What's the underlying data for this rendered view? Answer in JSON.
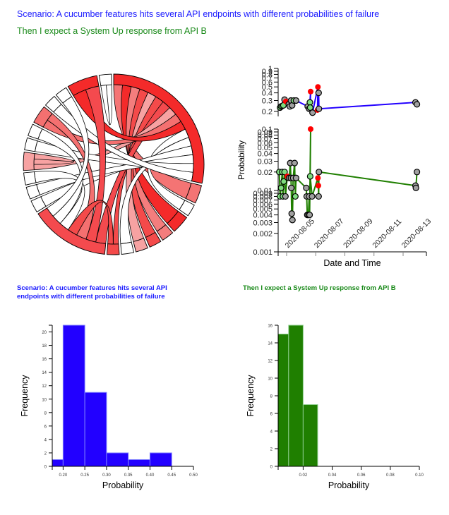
{
  "header": {
    "scenario_title": "Scenario: A cucumber features hits several API endpoints with different probabilities of failure",
    "step_title": "Then I expect a System Up response from API B"
  },
  "colors": {
    "scenario": "#2200ff",
    "step": "#1f7f00",
    "failure": "#ff0000",
    "pass_point": "#7fdc7f",
    "neutral_point": "#a0a0a0"
  },
  "chart_data": [
    {
      "type": "chord",
      "title": "",
      "groups": [
        {
          "id": 0,
          "color": "#f42a2a"
        },
        {
          "id": 1,
          "color": "#f47474"
        },
        {
          "id": 2,
          "color": "#ffffff"
        },
        {
          "id": 3,
          "color": "#f42a2a"
        },
        {
          "id": 4,
          "color": "#f47d7d"
        },
        {
          "id": 5,
          "color": "#f44a4a"
        },
        {
          "id": 6,
          "color": "#f7a2a2"
        },
        {
          "id": 7,
          "color": "#ffffff"
        },
        {
          "id": 8,
          "color": "#f44a4a"
        },
        {
          "id": 9,
          "color": "#f44a4e"
        },
        {
          "id": 10,
          "color": "#ffffff"
        },
        {
          "id": 11,
          "color": "#ffffff"
        },
        {
          "id": 12,
          "color": "#ffffff"
        },
        {
          "id": 13,
          "color": "#f7a2a2"
        },
        {
          "id": 14,
          "color": "#ffffff"
        },
        {
          "id": 15,
          "color": "#ffffff"
        },
        {
          "id": 16,
          "color": "#f47070"
        },
        {
          "id": 17,
          "color": "#ffffff"
        },
        {
          "id": 18,
          "color": "#ffffff"
        },
        {
          "id": 19,
          "color": "#f42a2a"
        },
        {
          "id": 20,
          "color": "#ffffff"
        }
      ],
      "group_weights": [
        26,
        3,
        2,
        3,
        2,
        2,
        2,
        2,
        2,
        13,
        2,
        2,
        2,
        3,
        2,
        2,
        3,
        2,
        2,
        5,
        2
      ],
      "ribbons": [
        {
          "source": 0,
          "target": 1,
          "color": "#f47474"
        },
        {
          "source": 0,
          "target": 3,
          "color": "#f42a2a"
        },
        {
          "source": 0,
          "target": 4,
          "color": "#f47d7d"
        },
        {
          "source": 0,
          "target": 5,
          "color": "#f44a4a"
        },
        {
          "source": 0,
          "target": 6,
          "color": "#f7a2a2"
        },
        {
          "source": 0,
          "target": 8,
          "color": "#f44a4a"
        },
        {
          "source": 0,
          "target": 9,
          "color": "#f44a4e"
        },
        {
          "source": 0,
          "target": 13,
          "color": "#f7a2a2"
        },
        {
          "source": 0,
          "target": 16,
          "color": "#f47070"
        },
        {
          "source": 0,
          "target": 19,
          "color": "#f42a2a"
        },
        {
          "source": 0,
          "target": 2,
          "color": "#ffffff"
        },
        {
          "source": 0,
          "target": 7,
          "color": "#ffffff"
        },
        {
          "source": 0,
          "target": 10,
          "color": "#ffffff"
        },
        {
          "source": 0,
          "target": 11,
          "color": "#ffffff"
        },
        {
          "source": 0,
          "target": 14,
          "color": "#ffffff"
        },
        {
          "source": 0,
          "target": 17,
          "color": "#ffffff"
        },
        {
          "source": 9,
          "target": 19,
          "color": "#f44a4e"
        },
        {
          "source": 9,
          "target": 16,
          "color": "#f47070"
        },
        {
          "source": 9,
          "target": 8,
          "color": "#f44a4a"
        },
        {
          "source": 9,
          "target": 12,
          "color": "#ffffff"
        },
        {
          "source": 9,
          "target": 15,
          "color": "#ffffff"
        },
        {
          "source": 9,
          "target": 18,
          "color": "#ffffff"
        },
        {
          "source": 20,
          "target": 20,
          "color": "#ffffff"
        },
        {
          "source": 13,
          "target": 13,
          "color": "#f7a2a2"
        }
      ]
    },
    {
      "type": "line",
      "title": "",
      "xlabel": "Date and Time",
      "ylabel": "Probability",
      "x_ticks": [
        "2020-08-05",
        "2020-08-07",
        "2020-08-09",
        "2020-08-11",
        "2020-08-13"
      ],
      "x_range": [
        "2020-08-04T10:00",
        "2020-08-14T14:00"
      ],
      "panels": [
        {
          "name": "scenario",
          "yscale": "log",
          "ylim": [
            0.18,
            1
          ],
          "y_ticks": [
            "0.2",
            "0.3",
            "0.4",
            "0.5",
            "0.6",
            "0.7",
            "0.8",
            "0.9",
            "1"
          ],
          "series_color": "#2200ff",
          "points": [
            {
              "t": 0.55,
              "v": 0.23,
              "c": "pass"
            },
            {
              "t": 0.62,
              "v": 0.24,
              "c": "pass"
            },
            {
              "t": 0.7,
              "v": 0.245,
              "c": "pass"
            },
            {
              "t": 0.78,
              "v": 0.25,
              "c": "pass"
            },
            {
              "t": 0.86,
              "v": 0.31,
              "c": "neutral"
            },
            {
              "t": 0.95,
              "v": 0.29,
              "c": "fail"
            },
            {
              "t": 1.15,
              "v": 0.26,
              "c": "neutral"
            },
            {
              "t": 1.22,
              "v": 0.24,
              "c": "neutral"
            },
            {
              "t": 1.3,
              "v": 0.3,
              "c": "neutral"
            },
            {
              "t": 1.38,
              "v": 0.25,
              "c": "neutral"
            },
            {
              "t": 1.5,
              "v": 0.3,
              "c": "pass"
            },
            {
              "t": 1.65,
              "v": 0.3,
              "c": "neutral"
            },
            {
              "t": 2.45,
              "v": 0.24,
              "c": "neutral"
            },
            {
              "t": 2.55,
              "v": 0.22,
              "c": "neutral"
            },
            {
              "t": 2.6,
              "v": 0.28,
              "c": "pass"
            },
            {
              "t": 2.65,
              "v": 0.42,
              "c": "fail"
            },
            {
              "t": 2.62,
              "v": 0.23,
              "c": "pass"
            },
            {
              "t": 2.78,
              "v": 0.19,
              "c": "neutral"
            },
            {
              "t": 3.15,
              "v": 0.5,
              "c": "fail"
            },
            {
              "t": 3.12,
              "v": 0.21,
              "c": "fail"
            },
            {
              "t": 3.2,
              "v": 0.4,
              "c": "neutral"
            },
            {
              "t": 3.22,
              "v": 0.22,
              "c": "neutral"
            },
            {
              "t": 9.85,
              "v": 0.28,
              "c": "neutral"
            },
            {
              "t": 9.95,
              "v": 0.26,
              "c": "neutral"
            }
          ]
        },
        {
          "name": "step",
          "yscale": "log",
          "ylim": [
            0.001,
            0.1
          ],
          "y_ticks": [
            "0.001",
            "0.002",
            "0.003",
            "0.004",
            "0.005",
            "0.006",
            "0.007",
            "0.008",
            "0.009",
            "0.01",
            "0.02",
            "0.03",
            "0.04",
            "0.05",
            "0.06",
            "0.07",
            "0.08",
            "0.09",
            "0.1"
          ],
          "series_color": "#1f7f00",
          "points": [
            {
              "t": 0.5,
              "v": 0.02,
              "c": "pass"
            },
            {
              "t": 0.55,
              "v": 0.008,
              "c": "pass"
            },
            {
              "t": 0.62,
              "v": 0.011,
              "c": "pass"
            },
            {
              "t": 0.7,
              "v": 0.02,
              "c": "pass"
            },
            {
              "t": 0.75,
              "v": 0.008,
              "c": "pass"
            },
            {
              "t": 0.8,
              "v": 0.014,
              "c": "pass"
            },
            {
              "t": 0.86,
              "v": 0.02,
              "c": "pass"
            },
            {
              "t": 0.92,
              "v": 0.008,
              "c": "neutral"
            },
            {
              "t": 1.05,
              "v": 0.017,
              "c": "fail"
            },
            {
              "t": 1.18,
              "v": 0.016,
              "c": "neutral"
            },
            {
              "t": 1.25,
              "v": 0.028,
              "c": "neutral"
            },
            {
              "t": 1.3,
              "v": 0.016,
              "c": "neutral"
            },
            {
              "t": 1.32,
              "v": 0.011,
              "c": "neutral"
            },
            {
              "t": 1.35,
              "v": 0.0042,
              "c": "neutral"
            },
            {
              "t": 1.4,
              "v": 0.0033,
              "c": "neutral"
            },
            {
              "t": 1.45,
              "v": 0.016,
              "c": "neutral"
            },
            {
              "t": 1.55,
              "v": 0.028,
              "c": "neutral"
            },
            {
              "t": 1.6,
              "v": 0.008,
              "c": "pass"
            },
            {
              "t": 1.65,
              "v": 0.016,
              "c": "neutral"
            },
            {
              "t": 2.35,
              "v": 0.011,
              "c": "neutral"
            },
            {
              "t": 2.38,
              "v": 0.008,
              "c": "neutral"
            },
            {
              "t": 2.42,
              "v": 0.004,
              "c": "neutral"
            },
            {
              "t": 2.5,
              "v": 0.004,
              "c": "neutral"
            },
            {
              "t": 2.55,
              "v": 0.008,
              "c": "neutral"
            },
            {
              "t": 2.58,
              "v": 0.004,
              "c": "neutral"
            },
            {
              "t": 2.65,
              "v": 0.1,
              "c": "fail"
            },
            {
              "t": 2.62,
              "v": 0.017,
              "c": "pass"
            },
            {
              "t": 2.75,
              "v": 0.008,
              "c": "neutral"
            },
            {
              "t": 3.15,
              "v": 0.016,
              "c": "fail"
            },
            {
              "t": 3.18,
              "v": 0.012,
              "c": "fail"
            },
            {
              "t": 3.2,
              "v": 0.008,
              "c": "neutral"
            },
            {
              "t": 3.22,
              "v": 0.02,
              "c": "neutral"
            },
            {
              "t": 9.85,
              "v": 0.012,
              "c": "neutral"
            },
            {
              "t": 9.88,
              "v": 0.011,
              "c": "neutral"
            },
            {
              "t": 9.95,
              "v": 0.02,
              "c": "neutral"
            }
          ]
        }
      ]
    },
    {
      "type": "bar",
      "title": "Scenario: A cucumber features hits several API endpoints with different probabilities of failure",
      "xlabel": "Probability",
      "ylabel": "Frequency",
      "xlim": [
        0.175,
        0.5
      ],
      "ylim": [
        0,
        21
      ],
      "x_ticks": [
        "0.20",
        "0.25",
        "0.30",
        "0.35",
        "0.40",
        "0.45",
        "0.50"
      ],
      "y_ticks": [
        "0",
        "2",
        "4",
        "6",
        "8",
        "10",
        "12",
        "14",
        "16",
        "18",
        "20"
      ],
      "bins": [
        {
          "x0": 0.175,
          "x1": 0.2,
          "count": 1
        },
        {
          "x0": 0.2,
          "x1": 0.25,
          "count": 21
        },
        {
          "x0": 0.25,
          "x1": 0.3,
          "count": 11
        },
        {
          "x0": 0.3,
          "x1": 0.35,
          "count": 2
        },
        {
          "x0": 0.35,
          "x1": 0.4,
          "count": 1
        },
        {
          "x0": 0.4,
          "x1": 0.45,
          "count": 2
        }
      ],
      "color": "#2200ff"
    },
    {
      "type": "bar",
      "title": "Then I expect a System Up response from API B",
      "xlabel": "Probability",
      "ylabel": "Frequency",
      "xlim": [
        0.0028,
        0.1
      ],
      "ylim": [
        0,
        16
      ],
      "x_ticks": [
        "0.02",
        "0.04",
        "0.06",
        "0.08",
        "0.10"
      ],
      "y_ticks": [
        "0",
        "2",
        "4",
        "6",
        "8",
        "10",
        "12",
        "14",
        "16"
      ],
      "bins": [
        {
          "x0": 0.0028,
          "x1": 0.01,
          "count": 15
        },
        {
          "x0": 0.01,
          "x1": 0.02,
          "count": 16
        },
        {
          "x0": 0.02,
          "x1": 0.03,
          "count": 7
        }
      ],
      "color": "#1f7f00"
    }
  ]
}
